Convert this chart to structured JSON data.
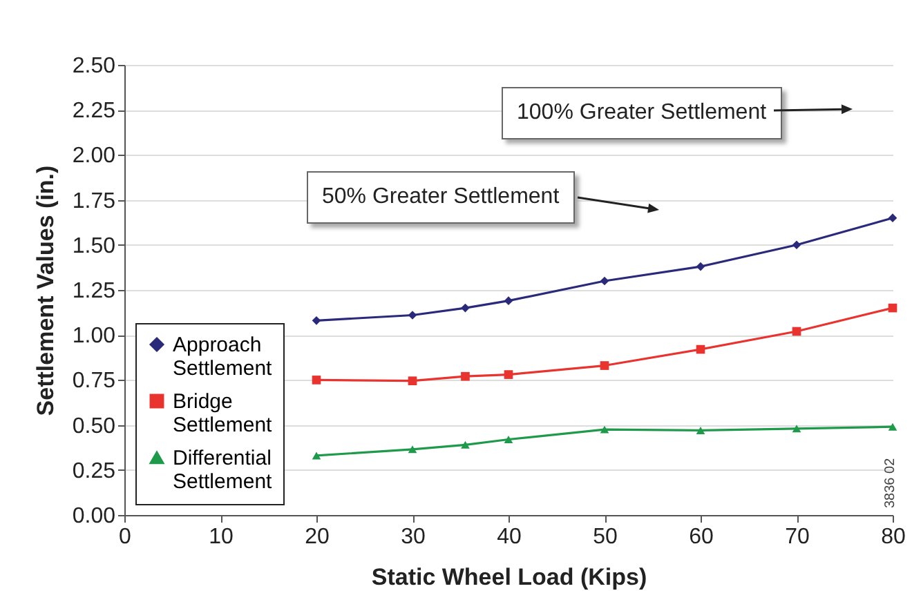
{
  "chart_data": {
    "type": "line",
    "xlabel": "Static Wheel Load (Kips)",
    "ylabel": "Settlement Values (in.)",
    "x": [
      20,
      30,
      35.5,
      40,
      50,
      60,
      70,
      80
    ],
    "series": [
      {
        "name": "Approach Settlement",
        "color": "#2b2a7a",
        "marker": "diamond",
        "values": [
          1.08,
          1.11,
          1.15,
          1.19,
          1.3,
          1.38,
          1.5,
          1.65
        ]
      },
      {
        "name": "Bridge Settlement",
        "color": "#e8332e",
        "marker": "square",
        "values": [
          0.75,
          0.745,
          0.77,
          0.78,
          0.83,
          0.92,
          1.02,
          1.15
        ]
      },
      {
        "name": "Differential Settlement",
        "color": "#1e9a4a",
        "marker": "triangle",
        "values": [
          0.33,
          0.365,
          0.39,
          0.42,
          0.475,
          0.47,
          0.48,
          0.49
        ]
      }
    ],
    "xlim": [
      0,
      80
    ],
    "xticks": [
      0,
      10,
      20,
      30,
      40,
      50,
      60,
      70,
      80
    ],
    "ylim": [
      0,
      2.5
    ],
    "yticks": [
      {
        "value": 0,
        "label": "0.00"
      },
      {
        "value": 0.25,
        "label": "0.25"
      },
      {
        "value": 0.5,
        "label": "0.50"
      },
      {
        "value": 0.75,
        "label": "0.75"
      },
      {
        "value": 1,
        "label": "1.00"
      },
      {
        "value": 1.25,
        "label": "1.25"
      },
      {
        "value": 1.5,
        "label": "1.50"
      },
      {
        "value": 1.75,
        "label": "1.75"
      },
      {
        "value": 2,
        "label": "2.00"
      },
      {
        "value": 2.25,
        "label": "2.25"
      },
      {
        "value": 2.5,
        "label": "2.50"
      }
    ],
    "grid": "y",
    "legend": "bottom left",
    "annotations": [
      "100% Greater Settlement",
      "50% Greater Settlement",
      "3836 02"
    ]
  }
}
